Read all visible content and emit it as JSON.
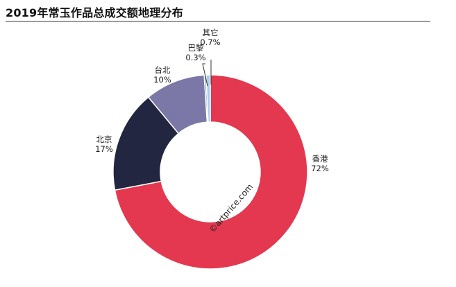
{
  "title": "2019年常玉作品总成交额地理分布",
  "watermark": "©artprice.com",
  "chart_data": {
    "type": "pie",
    "subtype": "donut",
    "start_angle_deg": 0,
    "direction": "clockwise",
    "slices": [
      {
        "name": "香港",
        "value": 72,
        "label": "72%",
        "color": "#e3384f"
      },
      {
        "name": "北京",
        "value": 17,
        "label": "17%",
        "color": "#222640"
      },
      {
        "name": "台北",
        "value": 10,
        "label": "10%",
        "color": "#7b77a6"
      },
      {
        "name": "巴黎",
        "value": 0.3,
        "label": "0.3%",
        "color": "#5b8fce"
      },
      {
        "name": "其它",
        "value": 0.7,
        "label": "0.7%",
        "color": "#a9cdef"
      }
    ]
  }
}
